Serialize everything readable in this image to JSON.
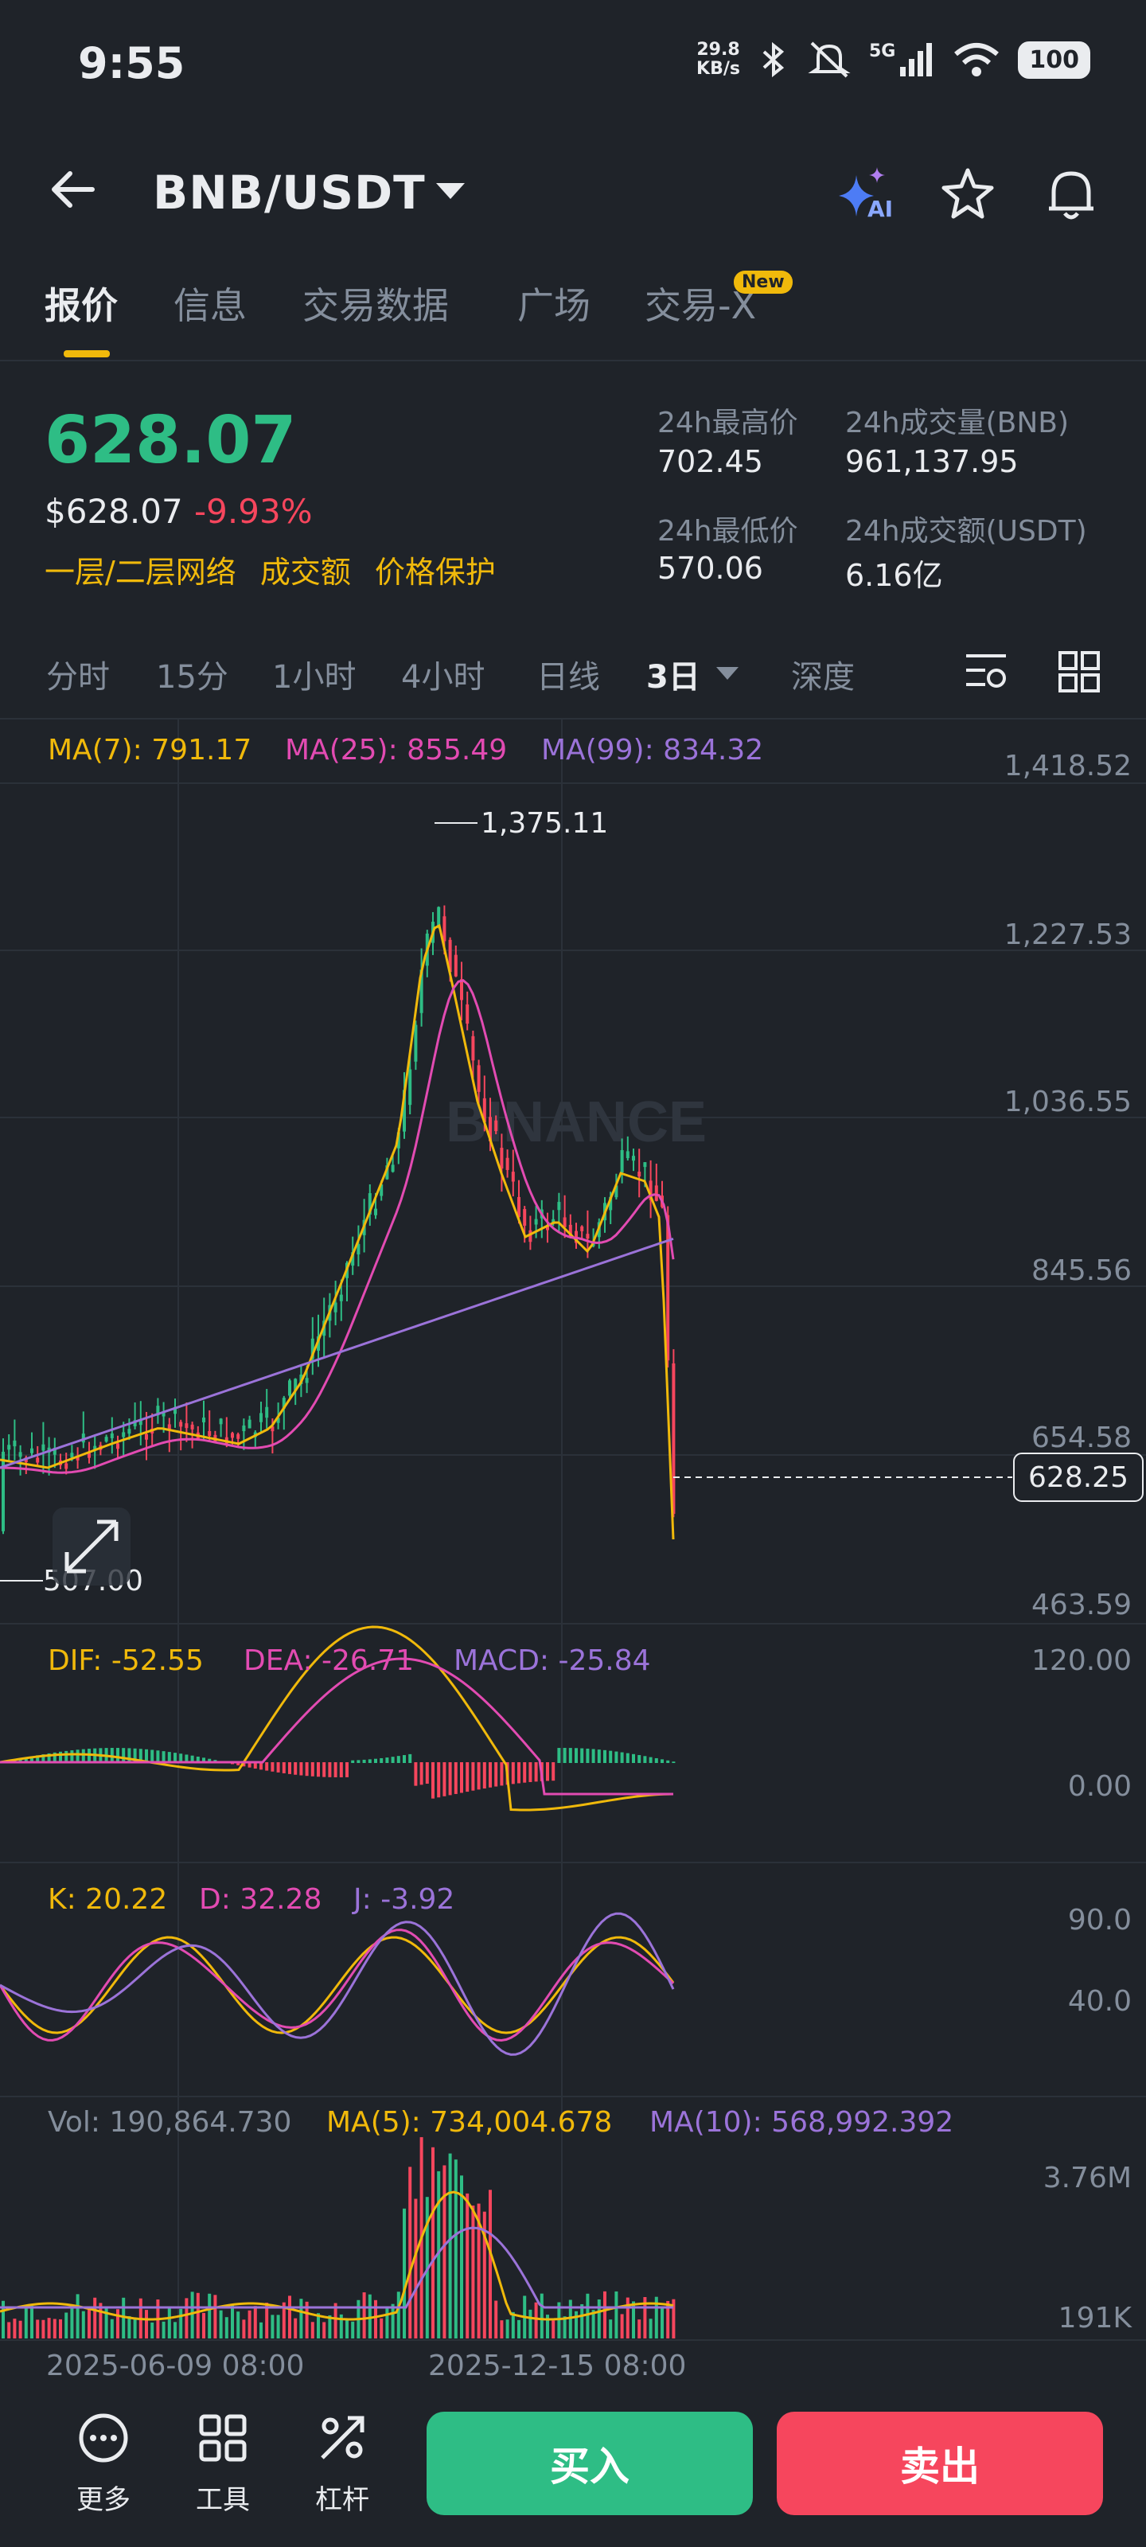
{
  "status_bar": {
    "time": "9:55",
    "net_speed_value": "29.8",
    "net_speed_unit": "KB/s",
    "network": "5G",
    "battery": "100"
  },
  "header": {
    "pair": "BNB/USDT",
    "ai_label": "AI"
  },
  "tabs": [
    {
      "label": "报价",
      "active": true
    },
    {
      "label": "信息"
    },
    {
      "label": "交易数据"
    },
    {
      "label": "广场"
    },
    {
      "label": "交易-X",
      "badge": "New"
    }
  ],
  "price": {
    "last": "628.07",
    "usd": "$628.07",
    "change": "-9.93%",
    "links": [
      "一层/二层网络",
      "成交额",
      "价格保护"
    ]
  },
  "stats": {
    "high_label": "24h最高价",
    "high": "702.45",
    "vol_bnb_label": "24h成交量(BNB)",
    "vol_bnb": "961,137.95",
    "low_label": "24h最低价",
    "low": "570.06",
    "vol_usdt_label": "24h成交额(USDT)",
    "vol_usdt": "6.16亿"
  },
  "intervals": [
    "分时",
    "15分",
    "1小时",
    "4小时",
    "日线",
    "3日",
    "深度"
  ],
  "active_interval": "3日",
  "legends": {
    "ma7": "MA(7): 791.17",
    "ma25": "MA(25): 855.49",
    "ma99": "MA(99): 834.32",
    "dif": "DIF: -52.55",
    "dea": "DEA: -26.71",
    "macd": "MACD: -25.84",
    "k": "K: 20.22",
    "d": "D: 32.28",
    "j": "J: -3.92",
    "vol": "Vol: 190,864.730",
    "vma5": "MA(5): 734,004.678",
    "vma10": "MA(10): 568,992.392"
  },
  "axes": {
    "price_ticks": [
      "1,418.52",
      "1,227.53",
      "1,036.55",
      "845.56",
      "654.58",
      "463.59"
    ],
    "current_price_tag": "628.25",
    "high_marker": "1,375.11",
    "low_marker": "507.00",
    "macd_ticks": [
      "120.00",
      "0.00"
    ],
    "kdj_ticks": [
      "90.0",
      "40.0"
    ],
    "vol_ticks": [
      "3.76M",
      "191K"
    ],
    "dates": [
      "2025-06-09 08:00",
      "2025-12-15 08:00"
    ]
  },
  "watermark": "BINANCE",
  "bottom_bar": {
    "more": "更多",
    "tools": "工具",
    "leverage": "杠杆",
    "buy": "买入",
    "sell": "卖出"
  },
  "colors": {
    "up": "#2ebd85",
    "down": "#f6465d",
    "accent": "#f0b90b",
    "ma25": "#e24bb2",
    "ma99": "#9b73d9"
  }
}
